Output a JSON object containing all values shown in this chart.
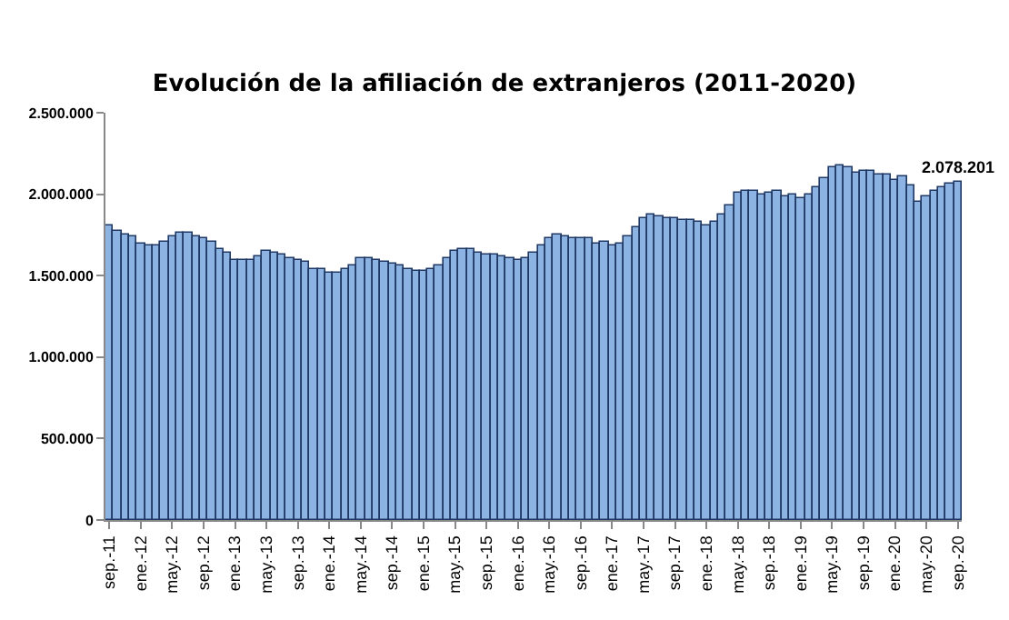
{
  "chart_data": {
    "type": "bar",
    "title": "Evolución de la afiliación de extranjeros (2011-2020)",
    "categories": [
      "sep.-11",
      null,
      null,
      null,
      "ene.-12",
      null,
      null,
      null,
      "may.-12",
      null,
      null,
      null,
      "sep.-12",
      null,
      null,
      null,
      "ene.-13",
      null,
      null,
      null,
      "may.-13",
      null,
      null,
      null,
      "sep.-13",
      null,
      null,
      null,
      "ene.-14",
      null,
      null,
      null,
      "may.-14",
      null,
      null,
      null,
      "sep.-14",
      null,
      null,
      null,
      "ene.-15",
      null,
      null,
      null,
      "may.-15",
      null,
      null,
      null,
      "sep.-15",
      null,
      null,
      null,
      "ene.-16",
      null,
      null,
      null,
      "may.-16",
      null,
      null,
      null,
      "sep.-16",
      null,
      null,
      null,
      "ene.-17",
      null,
      null,
      null,
      "may.-17",
      null,
      null,
      null,
      "sep.-17",
      null,
      null,
      null,
      "ene.-18",
      null,
      null,
      null,
      "may.-18",
      null,
      null,
      null,
      "sep.-18",
      null,
      null,
      null,
      "ene.-19",
      null,
      null,
      null,
      "may.-19",
      null,
      null,
      null,
      "sep.-19",
      null,
      null,
      null,
      "ene.-20",
      null,
      null,
      null,
      "may.-20",
      null,
      null,
      null,
      "sep.-20"
    ],
    "values": [
      1810000,
      1780000,
      1755000,
      1740000,
      1695000,
      1685000,
      1690000,
      1705000,
      1740000,
      1760000,
      1765000,
      1745000,
      1730000,
      1705000,
      1660000,
      1645000,
      1600000,
      1595000,
      1600000,
      1620000,
      1650000,
      1645000,
      1635000,
      1610000,
      1600000,
      1585000,
      1545000,
      1540000,
      1515000,
      1520000,
      1540000,
      1565000,
      1610000,
      1605000,
      1595000,
      1580000,
      1575000,
      1560000,
      1540000,
      1530000,
      1525000,
      1540000,
      1565000,
      1610000,
      1655000,
      1665000,
      1660000,
      1640000,
      1635000,
      1625000,
      1615000,
      1610000,
      1595000,
      1610000,
      1640000,
      1690000,
      1735000,
      1750000,
      1745000,
      1730000,
      1730000,
      1725000,
      1700000,
      1705000,
      1680000,
      1700000,
      1745000,
      1800000,
      1855000,
      1870000,
      1865000,
      1850000,
      1850000,
      1845000,
      1840000,
      1835000,
      1810000,
      1830000,
      1880000,
      1930000,
      2010000,
      2025000,
      2020000,
      1995000,
      2005000,
      2015000,
      1990000,
      1995000,
      1975000,
      1995000,
      2040000,
      2100000,
      2160000,
      2180000,
      2170000,
      2130000,
      2140000,
      2140000,
      2120000,
      2120000,
      2090000,
      2110000,
      2050000,
      1955000,
      1985000,
      2015000,
      2040000,
      2060000,
      2078201
    ],
    "value_labels": [
      null,
      null,
      null,
      null,
      null,
      null,
      null,
      null,
      null,
      null,
      null,
      null,
      null,
      null,
      null,
      null,
      null,
      null,
      null,
      null,
      null,
      null,
      null,
      null,
      null,
      null,
      null,
      null,
      null,
      null,
      null,
      null,
      null,
      null,
      null,
      null,
      null,
      null,
      null,
      null,
      null,
      null,
      null,
      null,
      null,
      null,
      null,
      null,
      null,
      null,
      null,
      null,
      null,
      null,
      null,
      null,
      null,
      null,
      null,
      null,
      null,
      null,
      null,
      null,
      null,
      null,
      null,
      null,
      null,
      null,
      null,
      null,
      null,
      null,
      null,
      null,
      null,
      null,
      null,
      null,
      null,
      null,
      null,
      null,
      null,
      null,
      null,
      null,
      null,
      null,
      null,
      null,
      null,
      null,
      null,
      null,
      null,
      null,
      null,
      null,
      null,
      null,
      null,
      null,
      null,
      null,
      null,
      null,
      "2.078.201"
    ],
    "color": "#8db3e2",
    "ylim": [
      0,
      2500000
    ],
    "yticks": [
      {
        "value": 0,
        "label": "0"
      },
      {
        "value": 500000,
        "label": "500.000"
      },
      {
        "value": 1000000,
        "label": "1.000.000"
      },
      {
        "value": 1500000,
        "label": "1.500.000"
      },
      {
        "value": 2000000,
        "label": "2.000.000"
      },
      {
        "value": 2500000,
        "label": "2.500.000"
      }
    ],
    "grid": false,
    "legend": false
  }
}
